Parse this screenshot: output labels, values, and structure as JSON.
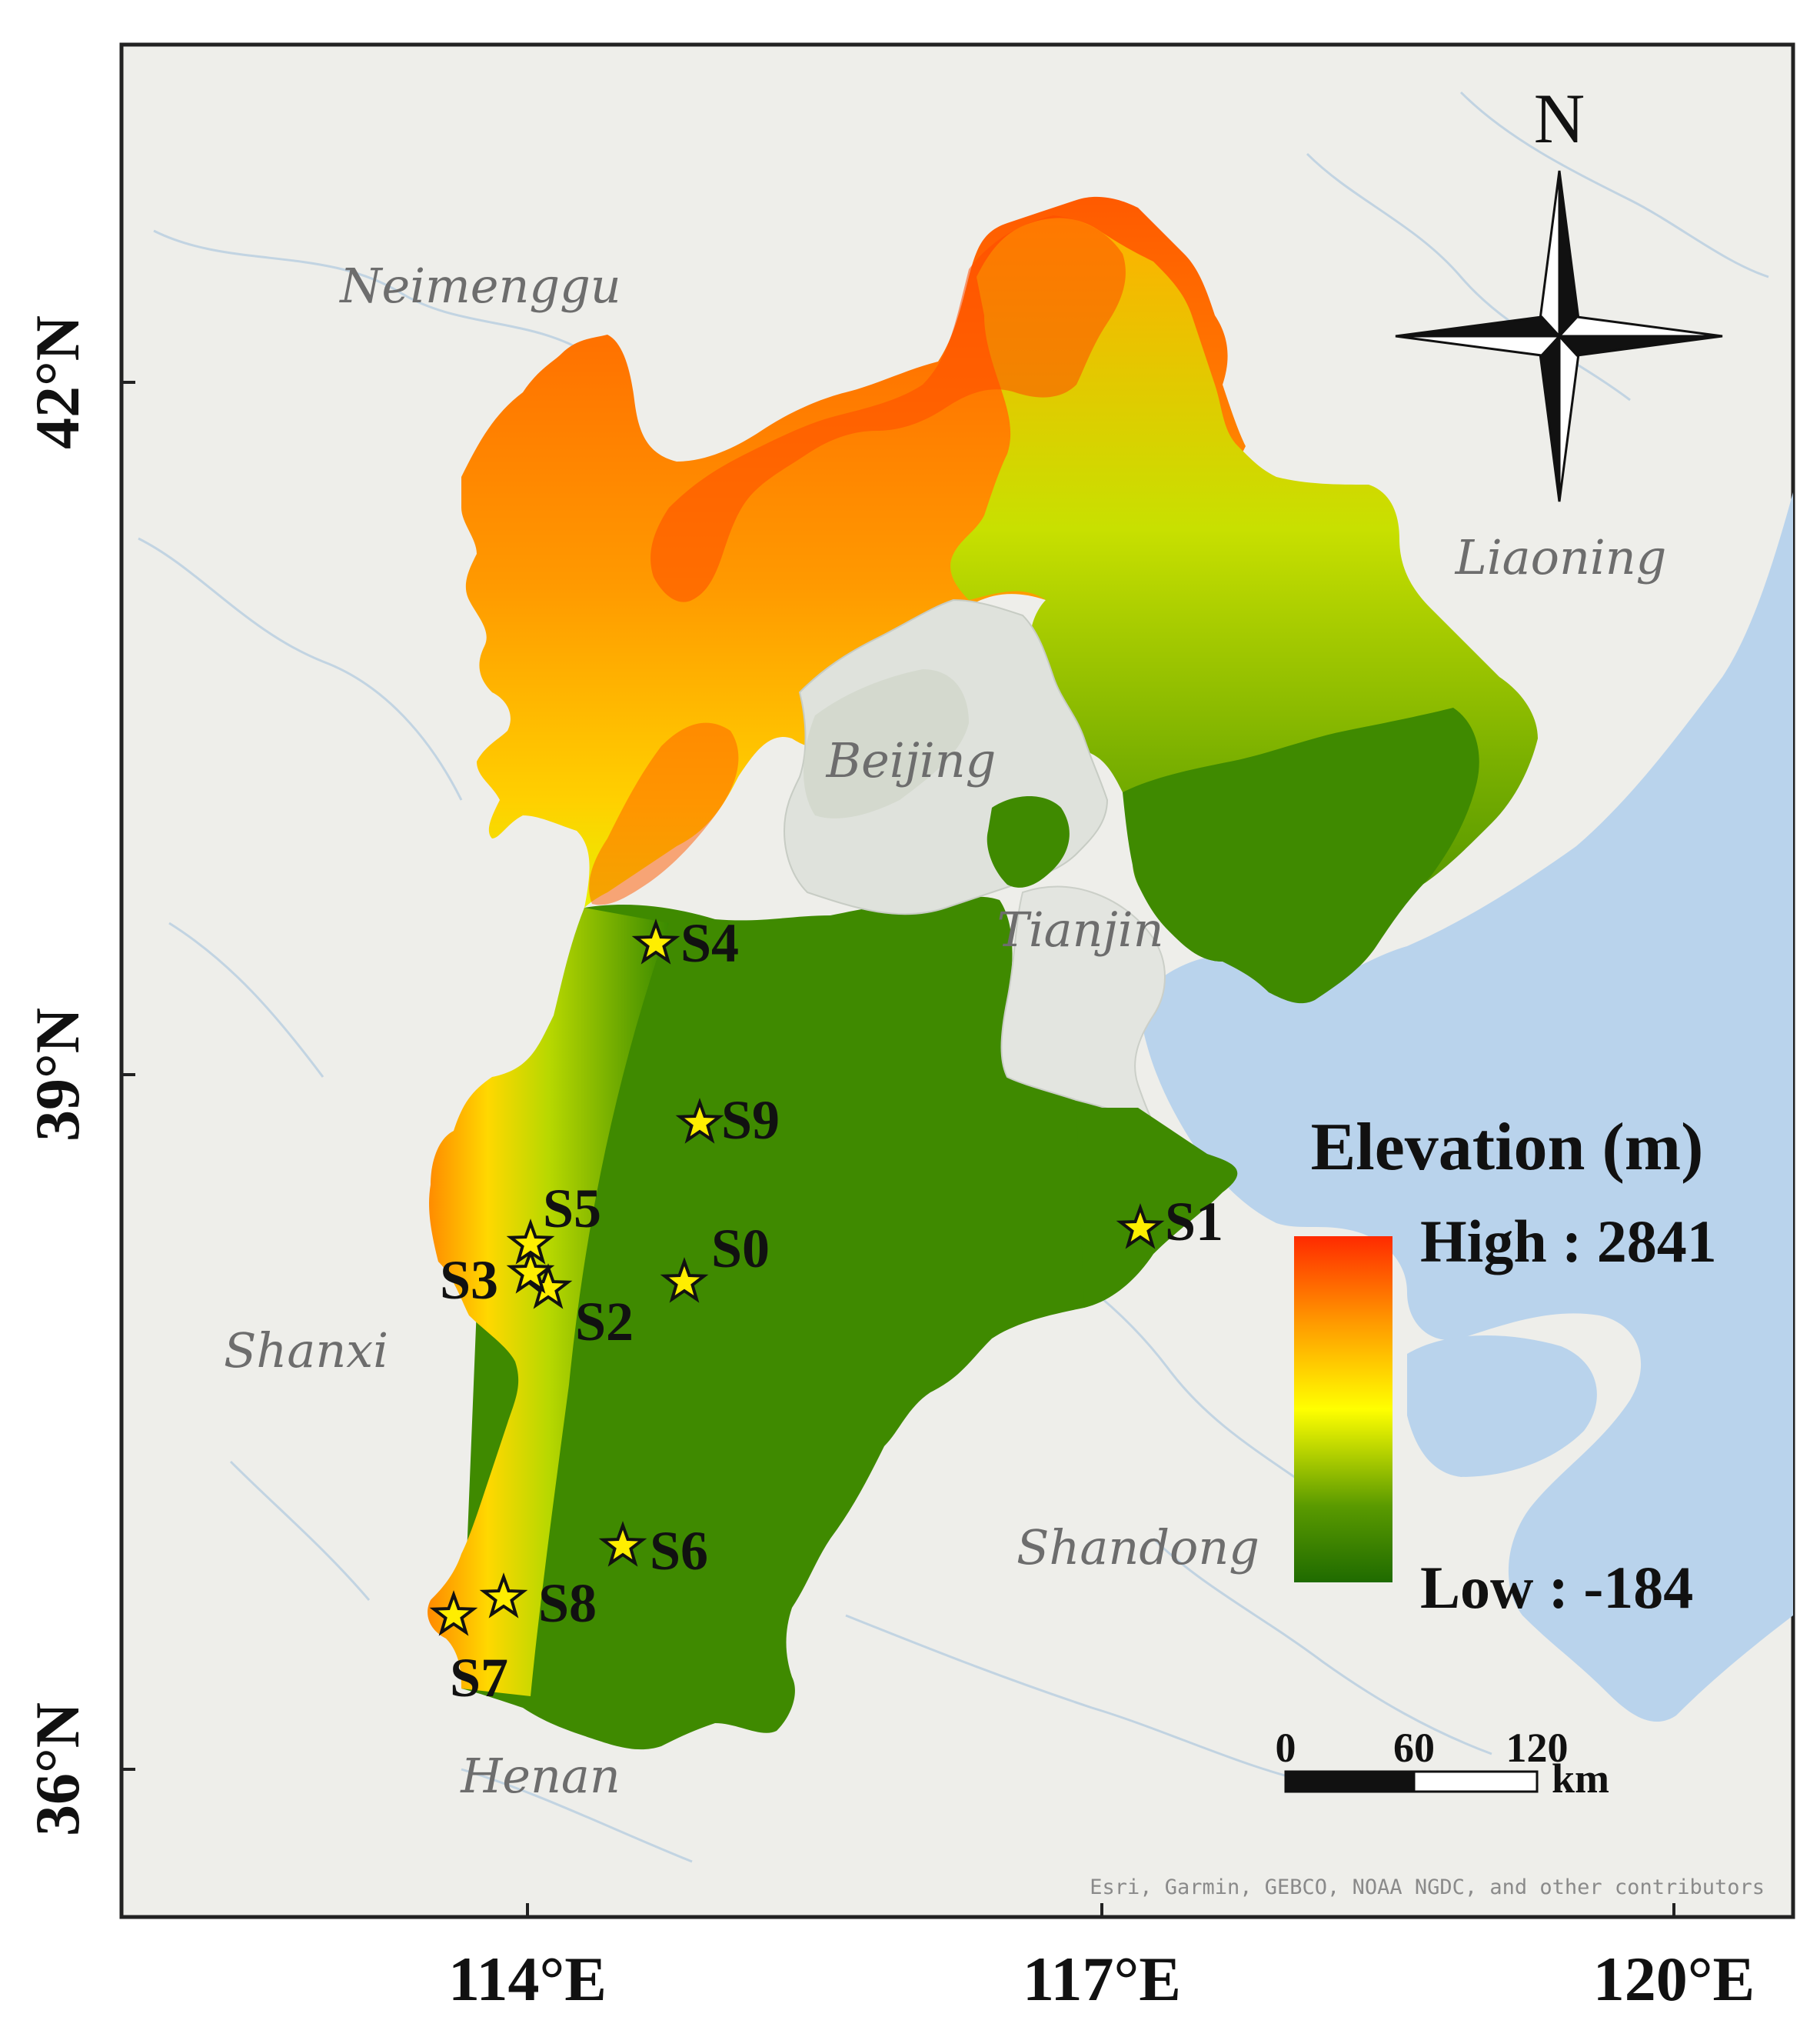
{
  "map": {
    "regions": [
      {
        "id": "neimenggu",
        "label": "Neimenggu"
      },
      {
        "id": "liaoning",
        "label": "Liaoning"
      },
      {
        "id": "beijing",
        "label": "Beijing"
      },
      {
        "id": "tianjin",
        "label": "Tianjin"
      },
      {
        "id": "shanxi",
        "label": "Shanxi"
      },
      {
        "id": "shandong",
        "label": "Shandong"
      },
      {
        "id": "henan",
        "label": "Henan"
      }
    ],
    "sites": [
      {
        "id": "s0",
        "label": "S0"
      },
      {
        "id": "s1",
        "label": "S1"
      },
      {
        "id": "s2",
        "label": "S2"
      },
      {
        "id": "s3",
        "label": "S3"
      },
      {
        "id": "s4",
        "label": "S4"
      },
      {
        "id": "s5",
        "label": "S5"
      },
      {
        "id": "s6",
        "label": "S6"
      },
      {
        "id": "s7",
        "label": "S7"
      },
      {
        "id": "s8",
        "label": "S8"
      },
      {
        "id": "s9",
        "label": "S9"
      }
    ],
    "site_color": "#ffee00",
    "x_ticks": [
      "114°E",
      "117°E",
      "120°E"
    ],
    "y_ticks": [
      "42°N",
      "39°N",
      "36°N"
    ],
    "legend": {
      "title": "Elevation (m)",
      "high_label": "High : 2841",
      "low_label": "Low : -184",
      "colors": [
        "#ff2a00",
        "#ff9a00",
        "#ffff00",
        "#3a8a00",
        "#1f6b00"
      ]
    },
    "north_arrow": {
      "label": "N"
    },
    "scale_bar": {
      "ticks": [
        "0",
        "60",
        "120"
      ],
      "unit": "km"
    },
    "attribution": "Esri, Garmin, GEBCO, NOAA NGDC, and other contributors"
  }
}
